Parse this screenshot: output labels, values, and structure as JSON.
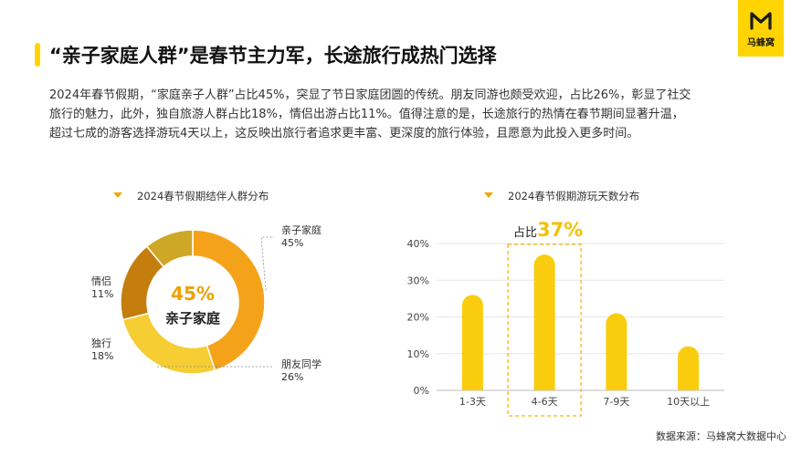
{
  "brand": {
    "name": "马蜂窝",
    "logo_icon": "m-logo-icon",
    "color": "#ffd400"
  },
  "header": {
    "title": "“亲子家庭人群”是春节主力军，长途旅行成热门选择"
  },
  "description": {
    "lines": [
      "2024年春节假期，“家庭亲子人群”占比45%，突显了节日家庭团圆的传统。朋友同游也颇受欢迎，占比26%，彰显了社交",
      "旅行的魅力，此外，独自旅游人群占比18%，情侣出游占比11%。值得注意的是，长途旅行的热情在春节期间显著升温，",
      "超过七成的游客选择游玩4天以上，这反映出旅行者追求更丰富、更深度的旅行体验，且愿意为此投入更多时间。"
    ]
  },
  "chart_data": [
    {
      "type": "pie",
      "title": "2024春节假期结伴人群分布",
      "center_value": "45%",
      "center_label": "亲子家庭",
      "slices": [
        {
          "label": "亲子家庭",
          "value": 45,
          "display": "45%",
          "color": "#f5a21b"
        },
        {
          "label": "朋友同学",
          "value": 26,
          "display": "26%",
          "color": "#f6cd32"
        },
        {
          "label": "独行",
          "value": 18,
          "display": "18%",
          "color": "#c57e0e"
        },
        {
          "label": "情侣",
          "value": 11,
          "display": "11%",
          "color": "#cfa727"
        }
      ]
    },
    {
      "type": "bar",
      "title": "2024春节假期游玩天数分布",
      "categories": [
        "1-3天",
        "4-6天",
        "7-9天",
        "10天以上"
      ],
      "values": [
        26,
        37,
        21,
        12
      ],
      "ylim": [
        0,
        40
      ],
      "yticks": [
        "0%",
        "10%",
        "20%",
        "30%",
        "40%"
      ],
      "grid": true,
      "bar_color": "#f9cd0e",
      "highlight": {
        "category": "4-6天",
        "prefix": "占比",
        "value": "37%"
      }
    }
  ],
  "source": "数据来源：马蜂窝大数据中心"
}
